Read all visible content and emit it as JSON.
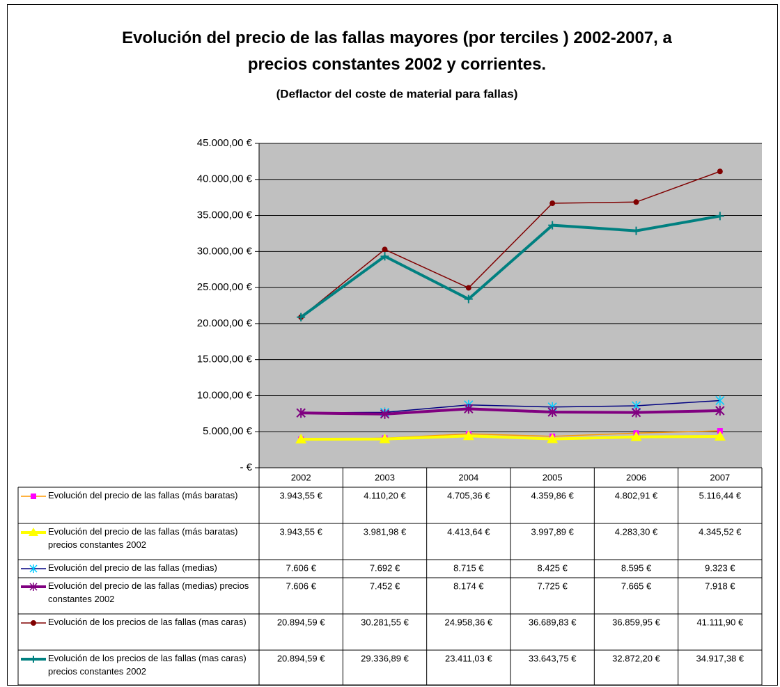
{
  "chart_data": {
    "type": "line",
    "title": "Evolución del precio de las fallas mayores (por terciles ) 2002-2007, a precios constantes 2002 y corrientes.",
    "subtitle": "(Deflactor del coste de material para fallas)",
    "categories": [
      "2002",
      "2003",
      "2004",
      "2005",
      "2006",
      "2007"
    ],
    "ylim": [
      0,
      45000
    ],
    "yticks": [
      {
        "value": 0,
        "label": "-   €"
      },
      {
        "value": 5000,
        "label": "5.000,00 €"
      },
      {
        "value": 10000,
        "label": "10.000,00 €"
      },
      {
        "value": 15000,
        "label": "15.000,00 €"
      },
      {
        "value": 20000,
        "label": "20.000,00 €"
      },
      {
        "value": 25000,
        "label": "25.000,00 €"
      },
      {
        "value": 30000,
        "label": "30.000,00 €"
      },
      {
        "value": 35000,
        "label": "35.000,00 €"
      },
      {
        "value": 40000,
        "label": "40.000,00 €"
      },
      {
        "value": 45000,
        "label": "45.000,00 €"
      }
    ],
    "grid": true,
    "plot_background": "#c0c0c0",
    "legend": "table",
    "series": [
      {
        "name": "Evolución del precio de las fallas (más baratas)",
        "color": "#ff9900",
        "marker_color": "#ff00ff",
        "marker": "square",
        "width": "thin",
        "values": [
          3943.55,
          4110.2,
          4705.36,
          4359.86,
          4802.91,
          5116.44
        ],
        "value_labels": [
          "3.943,55 €",
          "4.110,20 €",
          "4.705,36 €",
          "4.359,86 €",
          "4.802,91 €",
          "5.116,44 €"
        ]
      },
      {
        "name": "Evolución del precio de las fallas (más baratas) precios constantes 2002",
        "color": "#ffff00",
        "marker_color": "#ffff00",
        "marker": "triangle",
        "width": "thick",
        "values": [
          3943.55,
          3981.98,
          4413.64,
          3997.89,
          4283.3,
          4345.52
        ],
        "value_labels": [
          "3.943,55 €",
          "3.981,98 €",
          "4.413,64 €",
          "3.997,89 €",
          "4.283,30 €",
          "4.345,52 €"
        ]
      },
      {
        "name": "Evolución del precio de las fallas (medias)",
        "color": "#000080",
        "marker_color": "#00ccff",
        "marker": "star",
        "width": "thin",
        "values": [
          7606,
          7692,
          8715,
          8425,
          8595,
          9323
        ],
        "value_labels": [
          "7.606 €",
          "7.692 €",
          "8.715 €",
          "8.425 €",
          "8.595 €",
          "9.323 €"
        ]
      },
      {
        "name": "Evolución del precio de las fallas (medias) precios constantes 2002",
        "color": "#800080",
        "marker_color": "#800080",
        "marker": "star",
        "width": "thick",
        "values": [
          7606,
          7452,
          8174,
          7725,
          7665,
          7918
        ],
        "value_labels": [
          "7.606 €",
          "7.452 €",
          "8.174 €",
          "7.725 €",
          "7.665 €",
          "7.918 €"
        ]
      },
      {
        "name": "Evolución de los precios de las fallas (mas caras)",
        "color": "#800000",
        "marker_color": "#800000",
        "marker": "circle",
        "width": "thin",
        "values": [
          20894.59,
          30281.55,
          24958.36,
          36689.83,
          36859.95,
          41111.9
        ],
        "value_labels": [
          "20.894,59 €",
          "30.281,55 €",
          "24.958,36 €",
          "36.689,83 €",
          "36.859,95 €",
          "41.111,90 €"
        ]
      },
      {
        "name": "Evolución de los precios de las fallas (mas caras) precios constantes 2002",
        "color": "#008080",
        "marker_color": "#008080",
        "marker": "plus",
        "width": "thick",
        "values": [
          20894.59,
          29336.89,
          23411.03,
          33643.75,
          32872.2,
          34917.38
        ],
        "value_labels": [
          "20.894,59 €",
          "29.336,89 €",
          "23.411,03 €",
          "33.643,75 €",
          "32.872,20 €",
          "34.917,38 €"
        ]
      }
    ]
  }
}
